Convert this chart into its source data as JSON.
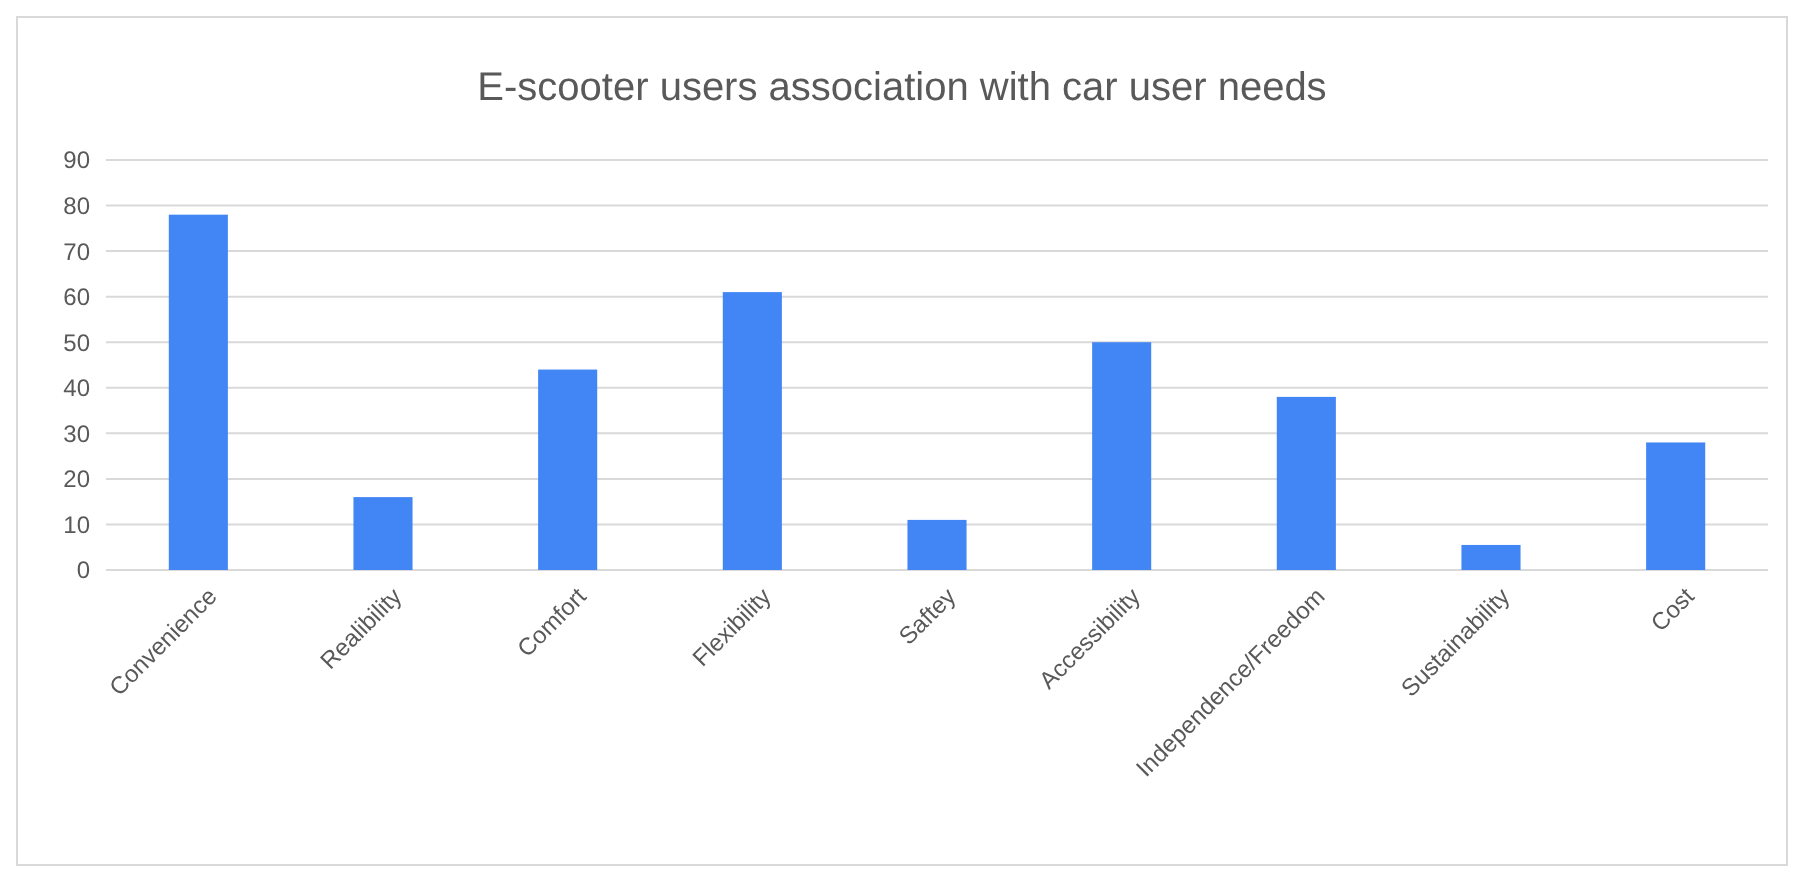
{
  "chart_data": {
    "type": "bar",
    "title": "E-scooter users association with car user needs",
    "categories": [
      "Convenience",
      "Realibility",
      "Comfort",
      "Flexibility",
      "Saftey",
      "Accessibility",
      "Independence/Freedom",
      "Sustainability",
      "Cost"
    ],
    "values": [
      78,
      16,
      44,
      61,
      11,
      50,
      38,
      5.5,
      28
    ],
    "color": "#4285f4",
    "ylim": [
      0,
      90
    ],
    "yticks": [
      0,
      10,
      20,
      30,
      40,
      50,
      60,
      70,
      80,
      90
    ],
    "grid": "y"
  }
}
